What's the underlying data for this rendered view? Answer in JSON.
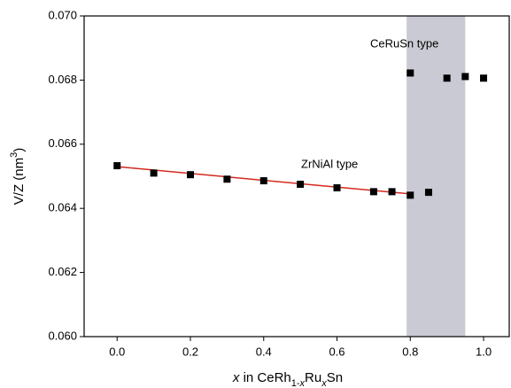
{
  "chart_data": {
    "type": "scatter",
    "xlabel": [
      {
        "text": "x",
        "style": "italic"
      },
      {
        "text": " in CeRh",
        "style": "normal"
      },
      {
        "text": "1-",
        "style": "sub"
      },
      {
        "text": "x",
        "style": "sub-italic"
      },
      {
        "text": "Ru",
        "style": "normal"
      },
      {
        "text": "x",
        "style": "sub-italic"
      },
      {
        "text": "Sn",
        "style": "normal"
      }
    ],
    "ylabel": [
      {
        "text": "V/Z (nm",
        "style": "normal"
      },
      {
        "text": "3",
        "style": "sup"
      },
      {
        "text": ")",
        "style": "normal"
      }
    ],
    "xlim": [
      -0.09,
      1.07
    ],
    "ylim": [
      0.06,
      0.07
    ],
    "xticks": [
      {
        "value": 0,
        "label": "0.0"
      },
      0.2,
      0.4,
      0.6,
      0.8,
      {
        "value": 1,
        "label": "1.0"
      }
    ],
    "yticks": [
      {
        "value": 0.06,
        "label": "0.060"
      },
      0.062,
      0.064,
      0.066,
      0.068,
      {
        "value": 0.07,
        "label": "0.070"
      }
    ],
    "shade": {
      "x": [
        0.79,
        0.95
      ],
      "color": "#c9cad3"
    },
    "series": [
      {
        "name": "ZrNiAl type",
        "color": "#000000",
        "x": [
          0,
          0.1,
          0.2,
          0.3,
          0.4,
          0.5,
          0.6,
          0.7,
          0.75,
          0.8,
          0.85
        ],
        "values": [
          0.06533,
          0.0651,
          0.06505,
          0.06491,
          0.06486,
          0.06475,
          0.06464,
          0.06452,
          0.06452,
          0.06441,
          0.0645
        ]
      },
      {
        "name": "CeRuSn type",
        "color": "#000000",
        "x": [
          0.8,
          0.9,
          0.95,
          1.0
        ],
        "values": [
          0.06822,
          0.06806,
          0.06811,
          0.06806
        ]
      },
      {
        "kind": "line",
        "color": "#d42a1e",
        "x": [
          0,
          0.8
        ],
        "values": [
          0.0653,
          0.06445
        ]
      }
    ]
  }
}
